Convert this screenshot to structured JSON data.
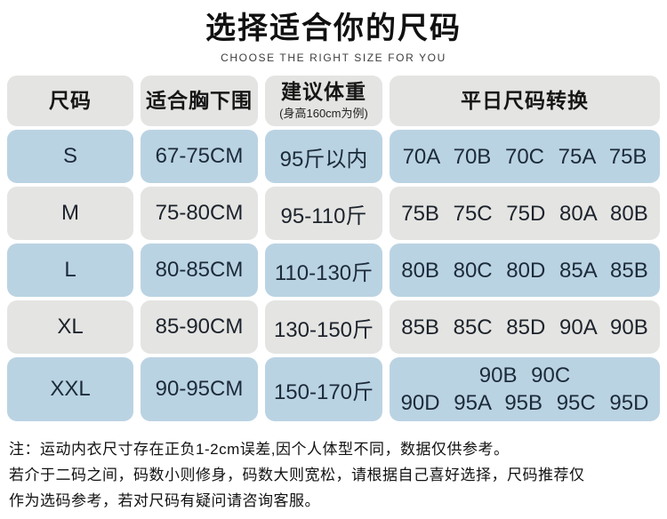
{
  "header": {
    "title": "选择适合你的尺码",
    "subtitle": "CHOOSE THE RIGHT SIZE FOR YOU"
  },
  "table": {
    "columns": {
      "size": {
        "label": "尺码"
      },
      "underbust": {
        "label": "适合胸下围"
      },
      "weight": {
        "label": "建议体重",
        "sublabel": "(身高160cm为例)"
      },
      "conversion": {
        "label": "平日尺码转换"
      }
    },
    "rows": [
      {
        "size": "S",
        "underbust": "67-75CM",
        "weight": "95斤以内",
        "conversion": "70A 70B 70C 75A 75B"
      },
      {
        "size": "M",
        "underbust": "75-80CM",
        "weight": "95-110斤",
        "conversion": "75B 75C 75D 80A 80B"
      },
      {
        "size": "L",
        "underbust": "80-85CM",
        "weight": "110-130斤",
        "conversion": "80B 80C 80D 85A 85B"
      },
      {
        "size": "XL",
        "underbust": "85-90CM",
        "weight": "130-150斤",
        "conversion": "85B 85C 85D 90A 90B"
      },
      {
        "size": "XXL",
        "underbust": "90-95CM",
        "weight": "150-170斤",
        "conversion": "90B 90C\n90D 95A 95B 95C 95D"
      }
    ]
  },
  "notes": {
    "line1": "注：运动内衣尺寸存在正负1-2cm误差,因个人体型不同，数据仅供参考。",
    "line2": "若介于二码之间，码数小则修身，码数大则宽松，请根据自己喜好选择，尺码推荐仅",
    "line3": "作为选码参考，若对尺码有疑问请咨询客服。"
  },
  "colors": {
    "row_blue": "#bad3e3",
    "cell_gray": "#e4e4e2",
    "text_dark": "#1c2b3a"
  }
}
